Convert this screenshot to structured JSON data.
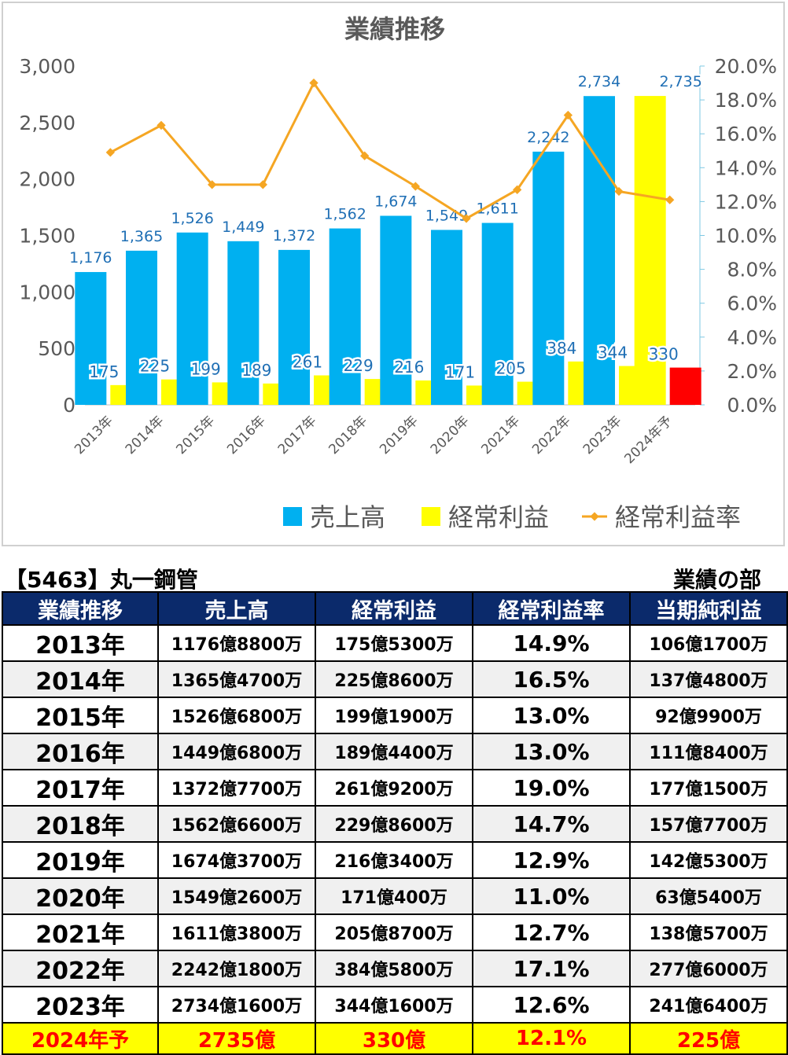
{
  "chart_data": {
    "type": "bar",
    "title": "業績推移",
    "categories": [
      "2013年",
      "2014年",
      "2015年",
      "2016年",
      "2017年",
      "2018年",
      "2019年",
      "2020年",
      "2021年",
      "2022年",
      "2023年",
      "2024年予"
    ],
    "series": [
      {
        "name": "売上高",
        "kind": "bar",
        "axis": "left",
        "color": "#00b0f0",
        "values": [
          1176,
          1365,
          1526,
          1449,
          1372,
          1562,
          1674,
          1549,
          1611,
          2242,
          2734,
          2735
        ],
        "last_color": "#ffff00"
      },
      {
        "name": "経常利益",
        "kind": "bar",
        "axis": "left",
        "color": "#ffff00",
        "values": [
          175,
          225,
          199,
          189,
          261,
          229,
          216,
          171,
          205,
          384,
          344,
          330
        ],
        "last_color": "#ff0000"
      },
      {
        "name": "経常利益率",
        "kind": "line",
        "axis": "right",
        "color": "#f5a623",
        "values": [
          14.9,
          16.5,
          13.0,
          13.0,
          19.0,
          14.7,
          12.9,
          11.0,
          12.7,
          17.1,
          12.6,
          12.1
        ]
      }
    ],
    "ylim": [
      0,
      3000
    ],
    "y_ticks": [
      "0",
      "500",
      "1,000",
      "1,500",
      "2,000",
      "2,500",
      "3,000"
    ],
    "y2lim": [
      0,
      20
    ],
    "y2_ticks": [
      "0.0%",
      "2.0%",
      "4.0%",
      "6.0%",
      "8.0%",
      "10.0%",
      "12.0%",
      "14.0%",
      "16.0%",
      "18.0%",
      "20.0%"
    ],
    "sales_labels": [
      "1,176",
      "1,365",
      "1,526",
      "1,449",
      "1,372",
      "1,562",
      "1,674",
      "1,549",
      "1,611",
      "2,242",
      "2,734",
      "2,735"
    ],
    "profit_labels": [
      "175",
      "225",
      "199",
      "189",
      "261",
      "229",
      "216",
      "171",
      "205",
      "384",
      "344",
      "330"
    ],
    "legend": [
      "売上高",
      "経常利益",
      "経常利益率"
    ],
    "legend_position": "bottom",
    "grid": false
  },
  "header": {
    "company": "【5463】丸一鋼管",
    "section": "業績の部"
  },
  "table": {
    "columns": [
      "業績推移",
      "売上高",
      "経常利益",
      "経常利益率",
      "当期純利益"
    ],
    "rows": [
      [
        "2013年",
        "1176億8800万",
        "175億5300万",
        "14.9%",
        "106億1700万"
      ],
      [
        "2014年",
        "1365億4700万",
        "225億8600万",
        "16.5%",
        "137億4800万"
      ],
      [
        "2015年",
        "1526億6800万",
        "199億1900万",
        "13.0%",
        "92億9900万"
      ],
      [
        "2016年",
        "1449億6800万",
        "189億4400万",
        "13.0%",
        "111億8400万"
      ],
      [
        "2017年",
        "1372億7700万",
        "261億9200万",
        "19.0%",
        "177億1500万"
      ],
      [
        "2018年",
        "1562億6600万",
        "229億8600万",
        "14.7%",
        "157億7700万"
      ],
      [
        "2019年",
        "1674億3700万",
        "216億3400万",
        "12.9%",
        "142億5300万"
      ],
      [
        "2020年",
        "1549億2600万",
        "171億400万",
        "11.0%",
        "63億5400万"
      ],
      [
        "2021年",
        "1611億3800万",
        "205億8700万",
        "12.7%",
        "138億5700万"
      ],
      [
        "2022年",
        "2242億1800万",
        "384億5800万",
        "17.1%",
        "277億6000万"
      ],
      [
        "2023年",
        "2734億1600万",
        "344億1600万",
        "12.6%",
        "241億6400万"
      ]
    ],
    "forecast": [
      "2024年予",
      "2735億",
      "330億",
      "12.1%",
      "225億"
    ]
  }
}
